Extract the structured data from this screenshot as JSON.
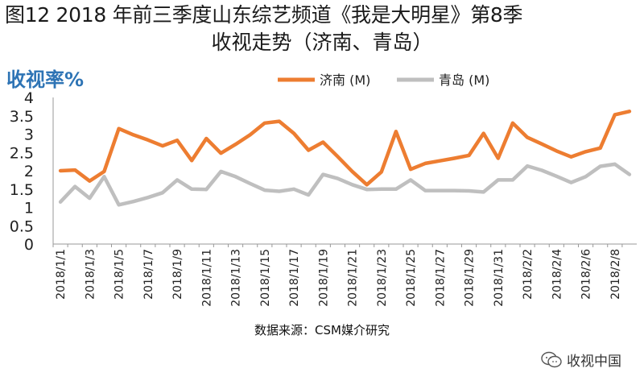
{
  "title_line1": "图12 2018 年前三季度山东综艺频道《我是大明星》第8季",
  "title_line2": "收视走势（济南、青岛）",
  "source": "数据来源：CSM媒介研究",
  "watermark": "收视中国",
  "chart_data": {
    "type": "line",
    "ylabel": "收视率%",
    "xlabel": "",
    "ylim": [
      0,
      4
    ],
    "yticks": [
      "0",
      "0.5",
      "1",
      "1.5",
      "2",
      "2.5",
      "3",
      "3.5",
      "4"
    ],
    "x": [
      "2018/1/1",
      "2018/1/2",
      "2018/1/3",
      "2018/1/4",
      "2018/1/5",
      "2018/1/6",
      "2018/1/7",
      "2018/1/8",
      "2018/1/9",
      "2018/1/10",
      "2018/1/11",
      "2018/1/12",
      "2018/1/13",
      "2018/1/14",
      "2018/1/15",
      "2018/1/16",
      "2018/1/17",
      "2018/1/18",
      "2018/1/19",
      "2018/1/20",
      "2018/1/21",
      "2018/1/22",
      "2018/1/23",
      "2018/1/24",
      "2018/1/25",
      "2018/1/26",
      "2018/1/27",
      "2018/1/28",
      "2018/1/29",
      "2018/1/30",
      "2018/1/31",
      "2018/2/1",
      "2018/2/2",
      "2018/2/3",
      "2018/2/4",
      "2018/2/5",
      "2018/2/6",
      "2018/2/7",
      "2018/2/8",
      "2018/2/9"
    ],
    "xtick_labels": [
      "2018/1/1",
      "2018/1/3",
      "2018/1/5",
      "2018/1/7",
      "2018/1/9",
      "2018/1/11",
      "2018/1/13",
      "2018/1/15",
      "2018/1/17",
      "2018/1/19",
      "2018/1/21",
      "2018/1/23",
      "2018/1/25",
      "2018/1/27",
      "2018/1/29",
      "2018/1/31",
      "2018/2/2",
      "2018/2/4",
      "2018/2/6",
      "2018/2/8"
    ],
    "legend_position": "top",
    "series": [
      {
        "name": "济南 (M)",
        "color": "#ed7d31",
        "values": [
          2.0,
          2.02,
          1.72,
          1.98,
          3.15,
          2.98,
          2.84,
          2.68,
          2.83,
          2.28,
          2.88,
          2.48,
          2.72,
          2.98,
          3.3,
          3.35,
          3.02,
          2.56,
          2.78,
          2.39,
          1.98,
          1.62,
          1.97,
          3.07,
          2.04,
          2.2,
          2.27,
          2.34,
          2.42,
          3.02,
          2.34,
          3.3,
          2.91,
          2.73,
          2.54,
          2.38,
          2.52,
          2.62,
          3.53,
          3.62
        ]
      },
      {
        "name": "青岛 (M)",
        "color": "#bfbfbf",
        "values": [
          1.15,
          1.57,
          1.25,
          1.84,
          1.07,
          1.16,
          1.27,
          1.4,
          1.75,
          1.5,
          1.49,
          1.98,
          1.84,
          1.65,
          1.47,
          1.44,
          1.5,
          1.34,
          1.9,
          1.79,
          1.62,
          1.49,
          1.5,
          1.5,
          1.75,
          1.46,
          1.46,
          1.46,
          1.45,
          1.42,
          1.75,
          1.75,
          2.13,
          2.01,
          1.85,
          1.68,
          1.84,
          2.12,
          2.18,
          1.9
        ]
      }
    ]
  }
}
